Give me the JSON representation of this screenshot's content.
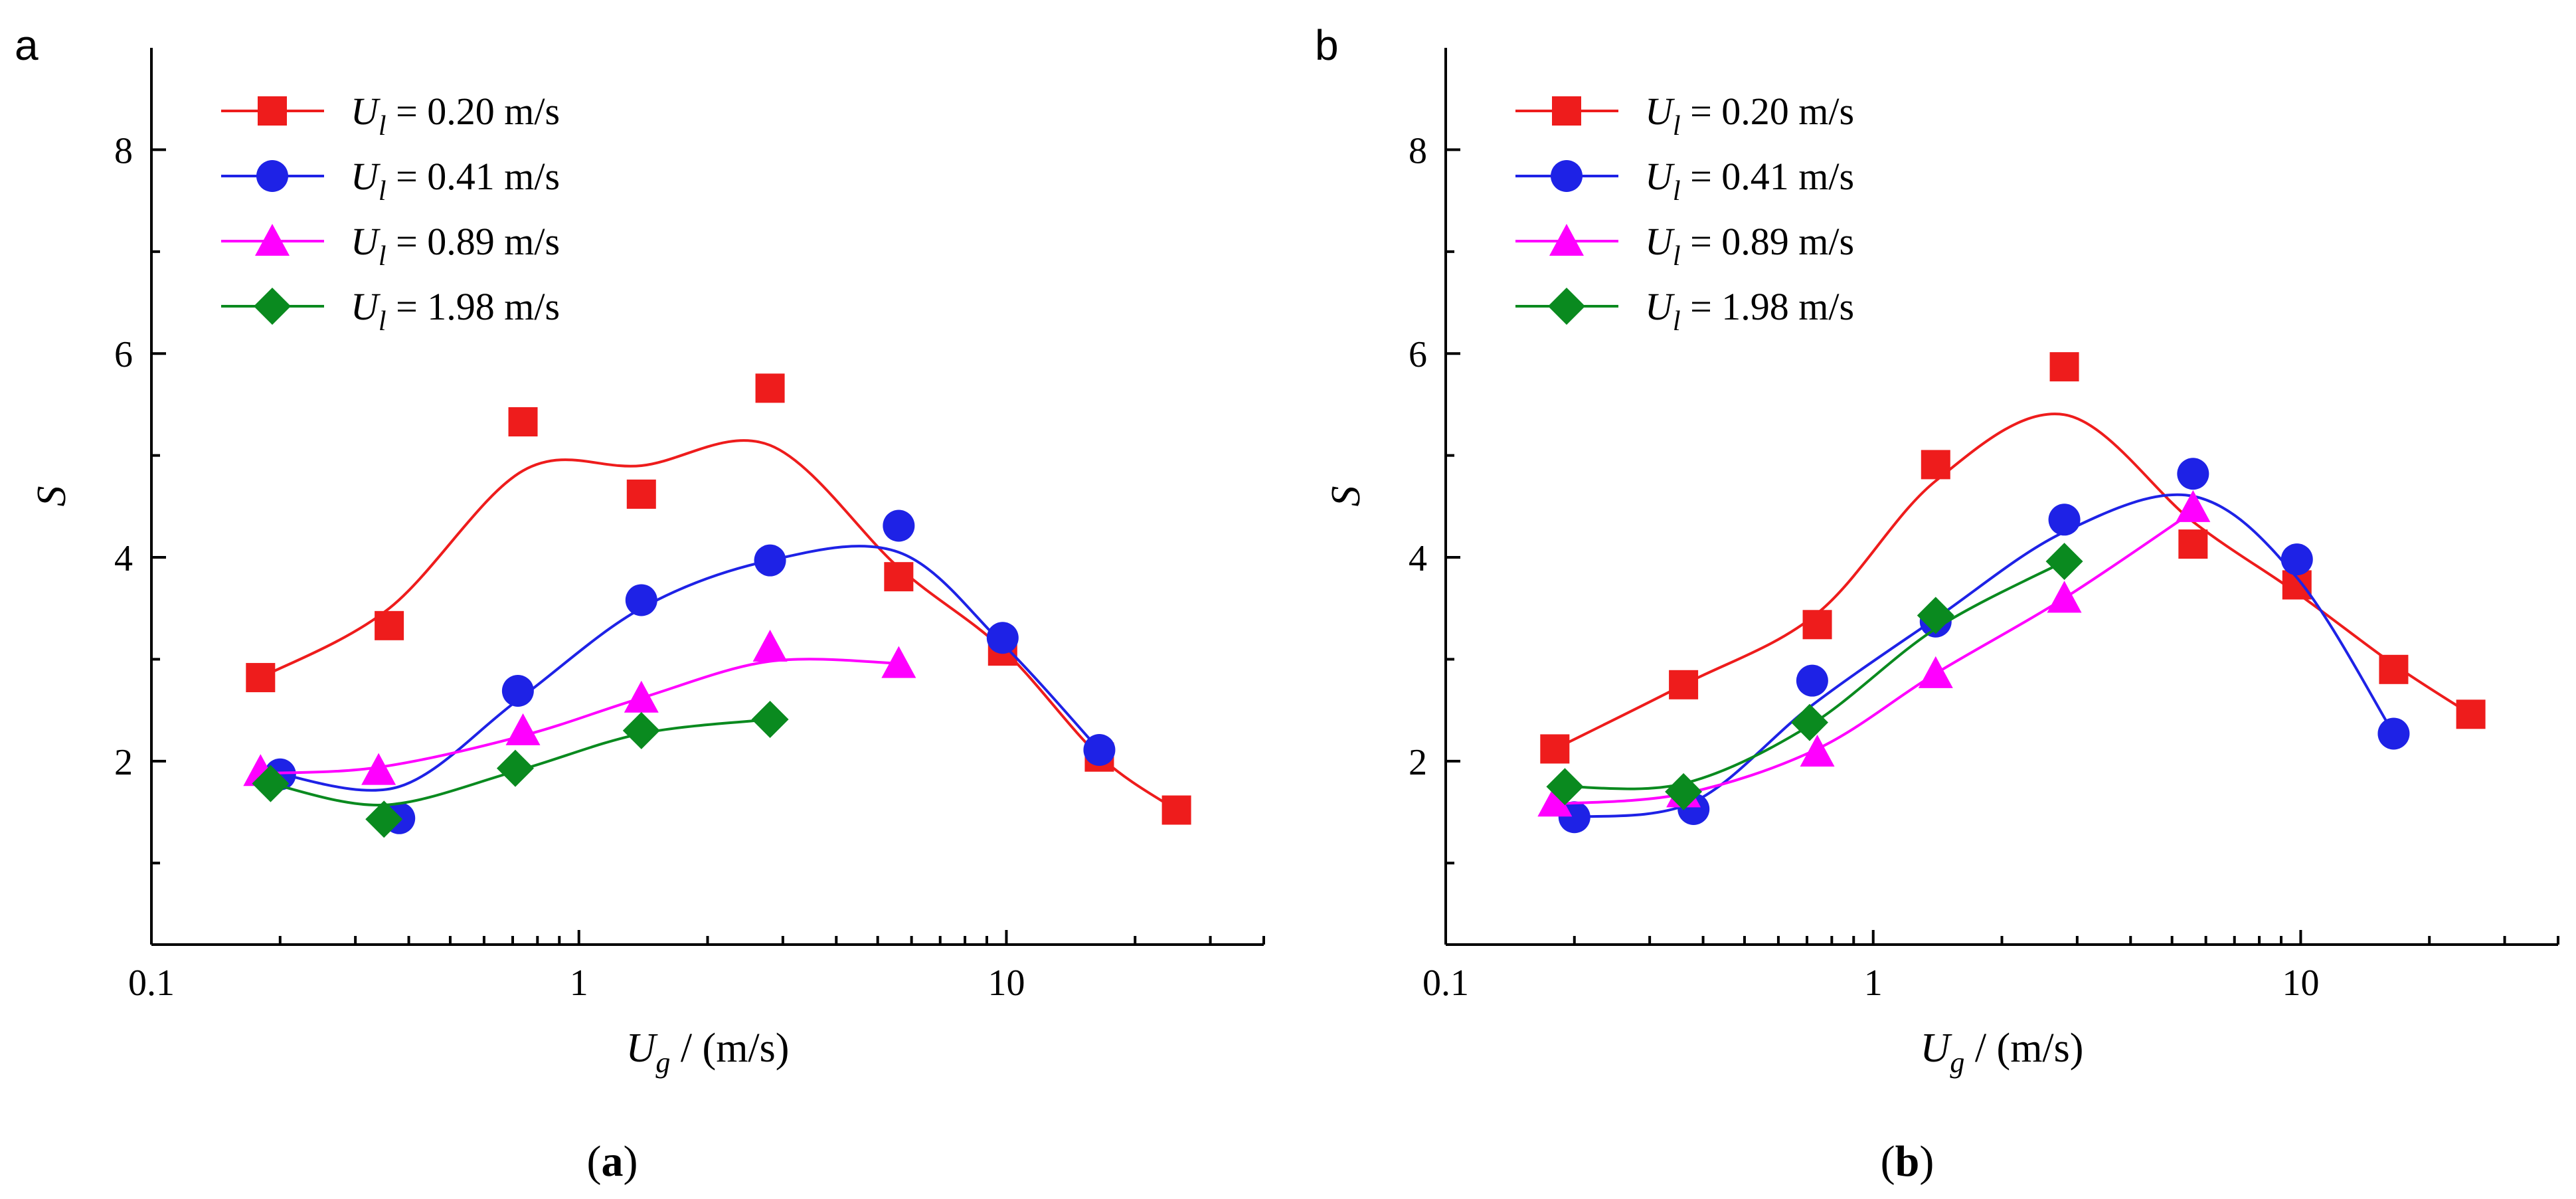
{
  "figure": {
    "caption_a": {
      "open": "(",
      "letter": "a",
      "close": ")"
    },
    "caption_b": {
      "open": "(",
      "letter": "b",
      "close": ")"
    }
  },
  "colors": {
    "red": "#ee1c1c",
    "blue": "#1e22e6",
    "magenta": "#ff00ff",
    "green": "#0a8a1f",
    "axis": "#000000"
  },
  "chart_data": [
    {
      "type": "line",
      "panel_label": "a",
      "title": "",
      "xlabel": {
        "main": "U",
        "sub": "g",
        "rest": " / (m/s)"
      },
      "ylabel": "S",
      "x_scale": "log",
      "xlim": [
        0.1,
        40
      ],
      "ylim": [
        0.2,
        9
      ],
      "x_ticks": [
        0.1,
        1,
        10
      ],
      "x_tick_labels": [
        "0.1",
        "1",
        "10"
      ],
      "y_ticks": [
        2,
        4,
        6,
        8
      ],
      "y_tick_labels": [
        "2",
        "4",
        "6",
        "8"
      ],
      "grid": false,
      "legend_position": "top-left",
      "series": [
        {
          "name": "Ul = 0.20 m/s",
          "legend_prefix": "U",
          "legend_sub": "l",
          "legend_rest": " = 0.20 m/s",
          "color": "red",
          "marker": "square",
          "points": [
            [
              0.18,
              2.82
            ],
            [
              0.36,
              3.33
            ],
            [
              0.74,
              5.33
            ],
            [
              1.4,
              4.62
            ],
            [
              2.8,
              5.66
            ],
            [
              5.6,
              3.81
            ],
            [
              9.8,
              3.08
            ],
            [
              16.5,
              2.04
            ],
            [
              25,
              1.52
            ]
          ],
          "fit": [
            [
              0.18,
              2.82
            ],
            [
              0.36,
              3.5
            ],
            [
              0.74,
              4.85
            ],
            [
              1.4,
              4.9
            ],
            [
              2.8,
              5.1
            ],
            [
              5.6,
              3.9
            ],
            [
              9.8,
              3.1
            ],
            [
              16.5,
              2.05
            ],
            [
              25,
              1.52
            ]
          ]
        },
        {
          "name": "Ul = 0.41 m/s",
          "legend_prefix": "U",
          "legend_sub": "l",
          "legend_rest": " = 0.41 m/s",
          "color": "blue",
          "marker": "circle",
          "points": [
            [
              0.2,
              1.87
            ],
            [
              0.38,
              1.44
            ],
            [
              0.72,
              2.69
            ],
            [
              1.4,
              3.58
            ],
            [
              2.8,
              3.97
            ],
            [
              5.6,
              4.31
            ],
            [
              9.8,
              3.21
            ],
            [
              16.5,
              2.11
            ]
          ],
          "fit": [
            [
              0.2,
              1.87
            ],
            [
              0.38,
              1.75
            ],
            [
              0.72,
              2.6
            ],
            [
              1.4,
              3.5
            ],
            [
              2.8,
              3.97
            ],
            [
              5.6,
              4.05
            ],
            [
              9.8,
              3.15
            ],
            [
              16.5,
              2.11
            ]
          ]
        },
        {
          "name": "Ul = 0.89 m/s",
          "legend_prefix": "U",
          "legend_sub": "l",
          "legend_rest": " = 0.89 m/s",
          "color": "magenta",
          "marker": "triangle",
          "points": [
            [
              0.18,
              1.9
            ],
            [
              0.34,
              1.91
            ],
            [
              0.74,
              2.3
            ],
            [
              1.4,
              2.62
            ],
            [
              2.8,
              3.12
            ],
            [
              5.6,
              2.96
            ]
          ],
          "fit": [
            [
              0.18,
              1.88
            ],
            [
              0.34,
              1.94
            ],
            [
              0.74,
              2.25
            ],
            [
              1.4,
              2.62
            ],
            [
              2.8,
              2.98
            ],
            [
              5.6,
              2.96
            ]
          ]
        },
        {
          "name": "Ul = 1.98 m/s",
          "legend_prefix": "U",
          "legend_sub": "l",
          "legend_rest": " = 1.98 m/s",
          "color": "green",
          "marker": "diamond",
          "points": [
            [
              0.19,
              1.78
            ],
            [
              0.35,
              1.43
            ],
            [
              0.71,
              1.93
            ],
            [
              1.4,
              2.3
            ],
            [
              2.8,
              2.41
            ]
          ],
          "fit": [
            [
              0.19,
              1.78
            ],
            [
              0.35,
              1.57
            ],
            [
              0.71,
              1.9
            ],
            [
              1.4,
              2.27
            ],
            [
              2.8,
              2.41
            ]
          ]
        }
      ]
    },
    {
      "type": "line",
      "panel_label": "b",
      "title": "",
      "xlabel": {
        "main": "U",
        "sub": "g",
        "rest": " / (m/s)"
      },
      "ylabel": "S",
      "x_scale": "log",
      "xlim": [
        0.1,
        40
      ],
      "ylim": [
        0.2,
        9
      ],
      "x_ticks": [
        0.1,
        1,
        10
      ],
      "x_tick_labels": [
        "0.1",
        "1",
        "10"
      ],
      "y_ticks": [
        2,
        4,
        6,
        8
      ],
      "y_tick_labels": [
        "2",
        "4",
        "6",
        "8"
      ],
      "grid": false,
      "legend_position": "top-left",
      "series": [
        {
          "name": "Ul = 0.20 m/s",
          "legend_prefix": "U",
          "legend_sub": "l",
          "legend_rest": " = 0.20 m/s",
          "color": "red",
          "marker": "square",
          "points": [
            [
              0.18,
              2.12
            ],
            [
              0.36,
              2.75
            ],
            [
              0.74,
              3.34
            ],
            [
              1.4,
              4.91
            ],
            [
              2.8,
              5.87
            ],
            [
              5.6,
              4.13
            ],
            [
              9.8,
              3.73
            ],
            [
              16.5,
              2.9
            ],
            [
              25,
              2.46
            ]
          ],
          "fit": [
            [
              0.18,
              2.12
            ],
            [
              0.36,
              2.75
            ],
            [
              0.74,
              3.45
            ],
            [
              1.4,
              4.75
            ],
            [
              2.8,
              5.4
            ],
            [
              5.6,
              4.35
            ],
            [
              9.8,
              3.65
            ],
            [
              16.5,
              2.95
            ],
            [
              25,
              2.46
            ]
          ]
        },
        {
          "name": "Ul = 0.41 m/s",
          "legend_prefix": "U",
          "legend_sub": "l",
          "legend_rest": " = 0.41 m/s",
          "color": "blue",
          "marker": "circle",
          "points": [
            [
              0.2,
              1.45
            ],
            [
              0.38,
              1.53
            ],
            [
              0.72,
              2.79
            ],
            [
              1.4,
              3.37
            ],
            [
              2.8,
              4.37
            ],
            [
              5.6,
              4.82
            ],
            [
              9.8,
              3.98
            ],
            [
              16.5,
              2.27
            ]
          ],
          "fit": [
            [
              0.2,
              1.45
            ],
            [
              0.38,
              1.6
            ],
            [
              0.72,
              2.55
            ],
            [
              1.4,
              3.4
            ],
            [
              2.8,
              4.25
            ],
            [
              5.6,
              4.6
            ],
            [
              9.8,
              3.8
            ],
            [
              16.5,
              2.27
            ]
          ]
        },
        {
          "name": "Ul = 0.89 m/s",
          "legend_prefix": "U",
          "legend_sub": "l",
          "legend_rest": " = 0.89 m/s",
          "color": "magenta",
          "marker": "triangle",
          "points": [
            [
              0.18,
              1.6
            ],
            [
              0.36,
              1.69
            ],
            [
              0.74,
              2.09
            ],
            [
              1.4,
              2.86
            ],
            [
              2.8,
              3.6
            ],
            [
              5.6,
              4.49
            ]
          ],
          "fit": [
            [
              0.18,
              1.58
            ],
            [
              0.36,
              1.68
            ],
            [
              0.74,
              2.12
            ],
            [
              1.4,
              2.86
            ],
            [
              2.8,
              3.6
            ],
            [
              5.6,
              4.45
            ]
          ]
        },
        {
          "name": "Ul = 1.98 m/s",
          "legend_prefix": "U",
          "legend_sub": "l",
          "legend_rest": " = 1.98 m/s",
          "color": "green",
          "marker": "diamond",
          "points": [
            [
              0.19,
              1.75
            ],
            [
              0.36,
              1.7
            ],
            [
              0.71,
              2.38
            ],
            [
              1.4,
              3.43
            ],
            [
              2.8,
              3.96
            ]
          ],
          "fit": [
            [
              0.19,
              1.75
            ],
            [
              0.36,
              1.78
            ],
            [
              0.71,
              2.35
            ],
            [
              1.4,
              3.3
            ],
            [
              2.8,
              3.96
            ]
          ]
        }
      ]
    }
  ]
}
